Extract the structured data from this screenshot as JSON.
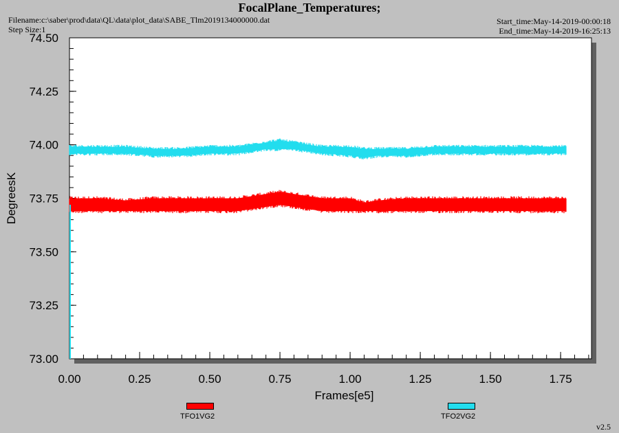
{
  "header": {
    "title": "FocalPlane_Temperatures;",
    "filename": "Filename:c:\\saber\\prod\\data\\QL\\data\\plot_data\\SABE_Tlm2019134000000.dat",
    "step_size": "Step Size:1",
    "start_time": "Start_time:May-14-2019-00:00:18",
    "end_time": "End_time:May-14-2019-16:25:13"
  },
  "footer": {
    "version": "v2.5"
  },
  "colors": {
    "background": "#c0c0c0",
    "plot_background": "#ffffff",
    "series1": "#ff0000",
    "series2": "#22ddee"
  },
  "chart_data": {
    "type": "line",
    "title": "FocalPlane_Temperatures;",
    "xlabel": "Frames[e5]",
    "ylabel": "DegreesK",
    "xlim": [
      0.0,
      1.86
    ],
    "ylim": [
      73.0,
      74.5
    ],
    "xticks": [
      "0.00",
      "0.25",
      "0.50",
      "0.75",
      "1.00",
      "1.25",
      "1.50",
      "1.75"
    ],
    "yticks": [
      "73.00",
      "73.25",
      "73.50",
      "73.75",
      "74.00",
      "74.25",
      "74.50"
    ],
    "grid": false,
    "legend_position": "bottom",
    "series": [
      {
        "name": "TFO1VG2",
        "color": "#ff0000",
        "x": [
          0.0,
          0.1,
          0.2,
          0.3,
          0.4,
          0.5,
          0.6,
          0.65,
          0.7,
          0.75,
          0.8,
          0.85,
          0.9,
          1.0,
          1.05,
          1.1,
          1.2,
          1.3,
          1.4,
          1.5,
          1.6,
          1.7,
          1.77
        ],
        "min": [
          73.68,
          73.68,
          73.68,
          73.68,
          73.68,
          73.68,
          73.68,
          73.69,
          73.7,
          73.71,
          73.7,
          73.69,
          73.68,
          73.68,
          73.68,
          73.68,
          73.68,
          73.68,
          73.68,
          73.68,
          73.68,
          73.68,
          73.68
        ],
        "max": [
          73.76,
          73.76,
          73.75,
          73.76,
          73.76,
          73.76,
          73.76,
          73.77,
          73.78,
          73.79,
          73.78,
          73.77,
          73.76,
          73.76,
          73.74,
          73.75,
          73.76,
          73.76,
          73.76,
          73.76,
          73.76,
          73.76,
          73.76
        ]
      },
      {
        "name": "TFO2VG2",
        "color": "#22ddee",
        "x": [
          0.0,
          0.1,
          0.2,
          0.3,
          0.4,
          0.5,
          0.6,
          0.65,
          0.7,
          0.75,
          0.8,
          0.85,
          0.9,
          1.0,
          1.05,
          1.1,
          1.2,
          1.3,
          1.4,
          1.5,
          1.6,
          1.7,
          1.77
        ],
        "min": [
          73.95,
          73.95,
          73.95,
          73.94,
          73.94,
          73.95,
          73.95,
          73.96,
          73.97,
          73.97,
          73.97,
          73.96,
          73.95,
          73.94,
          73.93,
          73.94,
          73.94,
          73.95,
          73.95,
          73.95,
          73.95,
          73.95,
          73.95
        ],
        "max": [
          74.0,
          74.0,
          74.0,
          73.99,
          73.99,
          74.0,
          74.0,
          74.01,
          74.02,
          74.03,
          74.02,
          74.01,
          74.0,
          74.0,
          73.99,
          73.99,
          73.99,
          74.0,
          74.0,
          74.0,
          74.0,
          74.0,
          74.0
        ]
      }
    ]
  }
}
